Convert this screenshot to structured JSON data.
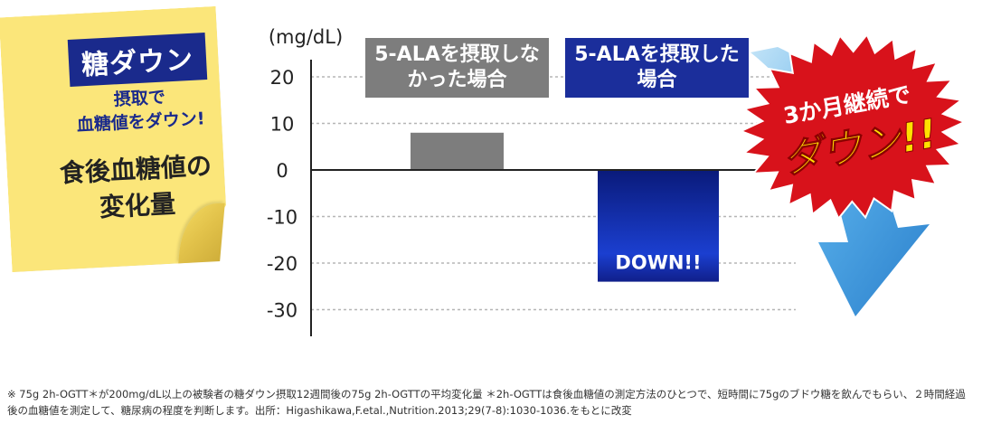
{
  "note": {
    "badge": "糖ダウン",
    "sub_line1": "摂取で",
    "sub_line2": "血糖値をダウン!",
    "title_line1": "食後血糖値の",
    "title_line2": "変化量"
  },
  "legend": {
    "without": "5-ALAを摂取しなかった場合",
    "with": "5-ALAを摂取した場合"
  },
  "burst": {
    "line1": "3か月継続で",
    "line2": "ダウン!!"
  },
  "footnote": "※ 75g 2h-OGTT＊が200mg/dL以上の被験者の糖ダウン摂取12週間後の75g 2h-OGTTの平均変化量 ＊2h-OGTTは食後血糖値の測定方法のひとつで、短時間に75gのブドウ糖を飲んでもらい、２時間経過後の血糖値を測定して、糖尿病の程度を判断します。出所：Higashikawa,F.etal.,Nutrition.2013;29(7-8):1030-1036.をもとに改変",
  "colors": {
    "gray_bar": "#7d7d7d",
    "blue_bar": "#1b2e9b",
    "burst_red": "#d8121b",
    "arrow_blue": "#2d8fd8",
    "note_yellow": "#fbe67a"
  },
  "chart_data": {
    "type": "bar",
    "unit_label": "(mg/dL)",
    "categories": [
      "5-ALAを摂取しなかった場合",
      "5-ALAを摂取した場合"
    ],
    "values": [
      8,
      -24
    ],
    "bar_labels": [
      "",
      "DOWN!!"
    ],
    "yticks": [
      20,
      10,
      0,
      -10,
      -20,
      -30
    ],
    "ylim": [
      -35,
      25
    ],
    "grid": true
  }
}
